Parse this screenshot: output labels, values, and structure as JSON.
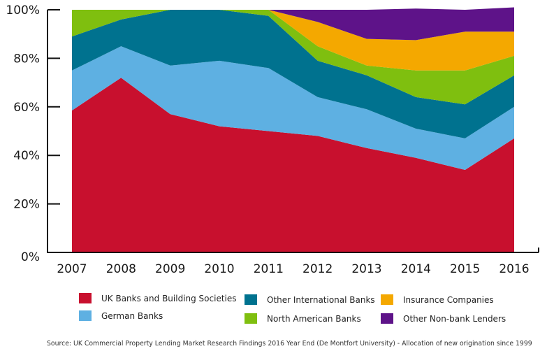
{
  "chart_data": {
    "type": "area",
    "stacked": true,
    "title": "",
    "xlabel": "",
    "ylabel": "",
    "ylim": [
      0,
      100
    ],
    "yticks": [
      "0%",
      "20%",
      "40%",
      "60%",
      "80%",
      "100%"
    ],
    "ytick_values": [
      0,
      20,
      40,
      60,
      80,
      100
    ],
    "x": [
      "2007",
      "2008",
      "2009",
      "2010",
      "2011",
      "2012",
      "2013",
      "2014",
      "2015",
      "2016"
    ],
    "grid": false,
    "legend_position": "bottom",
    "series": [
      {
        "name": "UK Banks and Building Societies",
        "color": "#c8102e",
        "values": [
          58.5,
          72,
          57,
          52,
          50,
          48,
          43,
          39,
          34,
          47
        ]
      },
      {
        "name": "German Banks",
        "color": "#5eb0e2",
        "values": [
          16.5,
          13,
          20,
          27,
          26,
          16,
          16,
          12,
          13,
          13
        ]
      },
      {
        "name": "Other International Banks",
        "color": "#00728f",
        "values": [
          14,
          11,
          23,
          21,
          21.5,
          15,
          14,
          13,
          14,
          13
        ]
      },
      {
        "name": "North American Banks",
        "color": "#7fbf0f",
        "values": [
          11,
          4,
          0,
          0,
          2.5,
          6,
          4,
          11,
          14,
          8
        ]
      },
      {
        "name": "Insurance Companies",
        "color": "#f4a800",
        "values": [
          0,
          0,
          0,
          0,
          0,
          10,
          11,
          12.5,
          16,
          10
        ]
      },
      {
        "name": "Other Non-bank Lenders",
        "color": "#5e1389",
        "values": [
          0,
          0,
          0,
          0,
          0,
          5,
          12,
          13,
          9,
          10
        ]
      }
    ]
  },
  "legend": {
    "items": [
      {
        "label": "UK Banks and Building Societies",
        "color": "#c8102e"
      },
      {
        "label": "German Banks",
        "color": "#5eb0e2"
      },
      {
        "label": "Other International Banks",
        "color": "#00728f"
      },
      {
        "label": "North American Banks",
        "color": "#7fbf0f"
      },
      {
        "label": "Insurance Companies",
        "color": "#f4a800"
      },
      {
        "label": "Other Non-bank Lenders",
        "color": "#5e1389"
      }
    ]
  },
  "source": "Source: UK Commercial Property Lending Market Research Findings 2016 Year End (De Montfort University) - Allocation of new origination since 1999"
}
